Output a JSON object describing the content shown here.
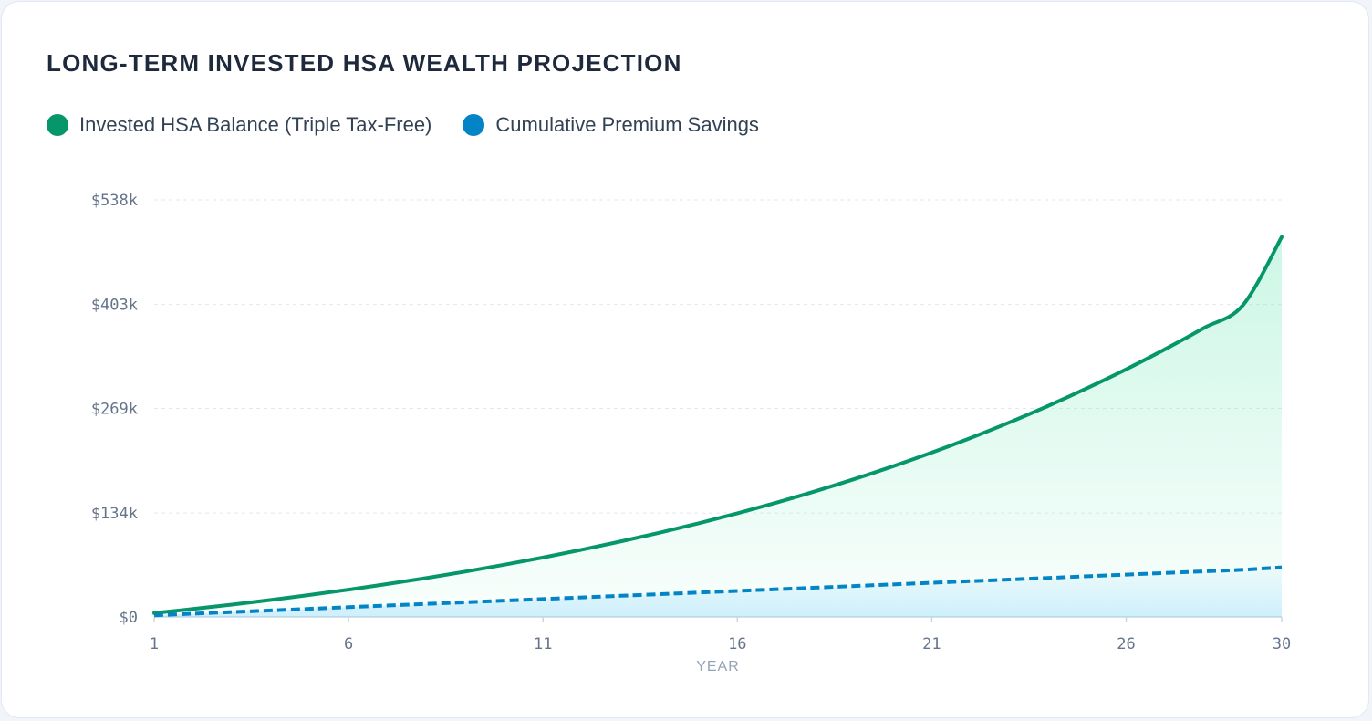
{
  "title": "LONG-TERM INVESTED HSA WEALTH PROJECTION",
  "legend": [
    {
      "label": "Invested HSA Balance (Triple Tax-Free)",
      "color": "#059669"
    },
    {
      "label": "Cumulative Premium Savings",
      "color": "#0284c7"
    }
  ],
  "chart_data": {
    "type": "area",
    "xlabel": "YEAR",
    "ylabel": "",
    "x": [
      1,
      2,
      3,
      4,
      5,
      6,
      7,
      8,
      9,
      10,
      11,
      12,
      13,
      14,
      15,
      16,
      17,
      18,
      19,
      20,
      21,
      22,
      23,
      24,
      25,
      26,
      27,
      28,
      29,
      30
    ],
    "xlim": [
      1,
      30
    ],
    "ylim": [
      0,
      538000
    ],
    "x_ticks": [
      1,
      6,
      11,
      16,
      21,
      26,
      30
    ],
    "x_tick_labels": [
      "1",
      "6",
      "11",
      "16",
      "21",
      "26",
      "30"
    ],
    "y_ticks": [
      0,
      134000,
      269000,
      403000,
      538000
    ],
    "y_tick_labels": [
      "$0",
      "$134k",
      "$269k",
      "$403k",
      "$538k"
    ],
    "grid": true,
    "legend_position": "top-left",
    "series": [
      {
        "name": "Invested HSA Balance (Triple Tax-Free)",
        "color": "#059669",
        "style": "solid",
        "values": [
          5000,
          10300,
          15900,
          21900,
          28400,
          35200,
          42500,
          50200,
          58500,
          67300,
          76700,
          86700,
          97400,
          108700,
          120800,
          133700,
          147400,
          162100,
          177700,
          194300,
          212000,
          230900,
          251000,
          272400,
          295200,
          319400,
          345300,
          372800,
          402000,
          490000
        ]
      },
      {
        "name": "Cumulative Premium Savings",
        "color": "#0284c7",
        "style": "dashed",
        "values": [
          2100,
          4200,
          6300,
          8400,
          10500,
          12600,
          14700,
          16800,
          18900,
          21000,
          23100,
          25200,
          27300,
          29400,
          31500,
          33600,
          35700,
          37800,
          39900,
          42000,
          44100,
          46200,
          48300,
          50400,
          52500,
          54600,
          56700,
          58800,
          60900,
          64000
        ]
      }
    ]
  }
}
